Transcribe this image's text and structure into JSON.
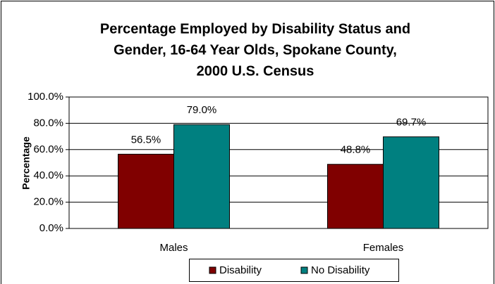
{
  "chart_data": {
    "type": "bar",
    "title": [
      "Percentage Employed by Disability Status and",
      "Gender, 16-64 Year Olds, Spokane County,",
      "2000 U.S. Census"
    ],
    "y_label": "Percentage",
    "categories": [
      "Males",
      "Females"
    ],
    "series": [
      {
        "name": "Disability",
        "color": "#800000",
        "values": [
          56.5,
          48.8
        ],
        "value_labels": [
          "56.5%",
          "48.8%"
        ]
      },
      {
        "name": "No Disability",
        "color": "#008080",
        "values": [
          79.0,
          69.7
        ],
        "value_labels": [
          "79.0%",
          "69.7%"
        ]
      }
    ],
    "ylim": [
      0,
      100
    ],
    "yticks": [
      {
        "value": 0,
        "label": "0.0%"
      },
      {
        "value": 20,
        "label": "20.0%"
      },
      {
        "value": 40,
        "label": "40.0%"
      },
      {
        "value": 60,
        "label": "60.0%"
      },
      {
        "value": 80,
        "label": "80.0%"
      },
      {
        "value": 100,
        "label": "100.0%"
      }
    ],
    "grid": true,
    "legend": "bottom"
  }
}
